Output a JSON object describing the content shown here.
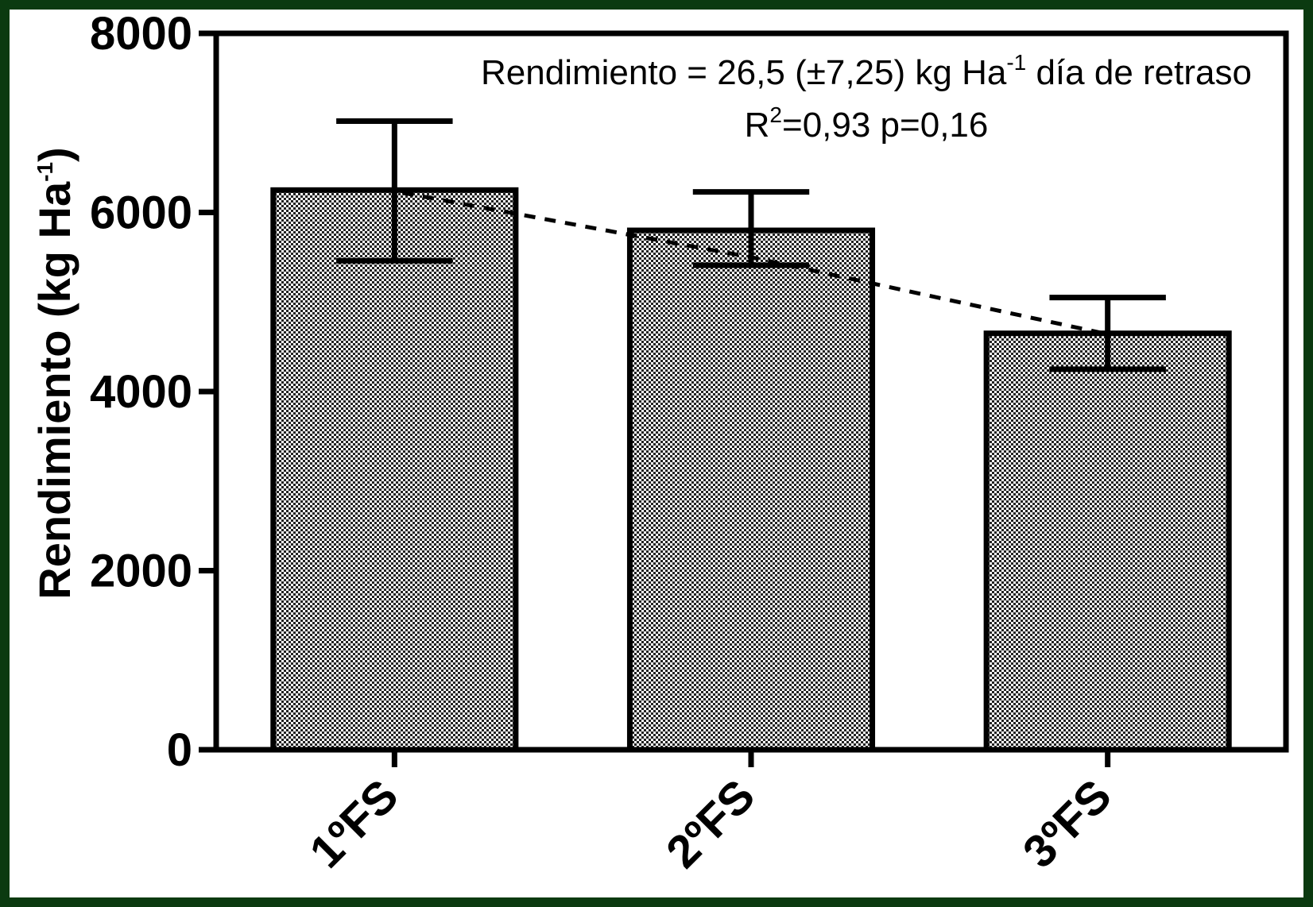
{
  "chart_data": {
    "type": "bar",
    "categories": [
      "1ºFS",
      "2ºFS",
      "3ºFS"
    ],
    "values": [
      6250,
      5800,
      4650
    ],
    "error_upper": [
      7020,
      6230,
      5050
    ],
    "error_lower": [
      5460,
      5410,
      4250
    ],
    "trend_line": {
      "style": "dashed",
      "values": [
        6220,
        5500,
        4640
      ]
    },
    "ylim": [
      0,
      8000
    ],
    "yticks": [
      "0",
      "2000",
      "4000",
      "6000",
      "8000"
    ],
    "ylabel": {
      "main": "Rendimiento (kg Ha",
      "sup": "-1",
      "close": ")"
    },
    "annotation": {
      "line1_a": "Rendimiento = 26,5 (±7,25) kg Ha",
      "line1_sup": "-1",
      "line1_b": " día de retraso",
      "line2_a": "R",
      "line2_sup": "2",
      "line2_b": "=0,93   p=0,16"
    },
    "bar_fill": "#8f8f8f",
    "frame_color": "#0b3a10",
    "grid": false
  }
}
